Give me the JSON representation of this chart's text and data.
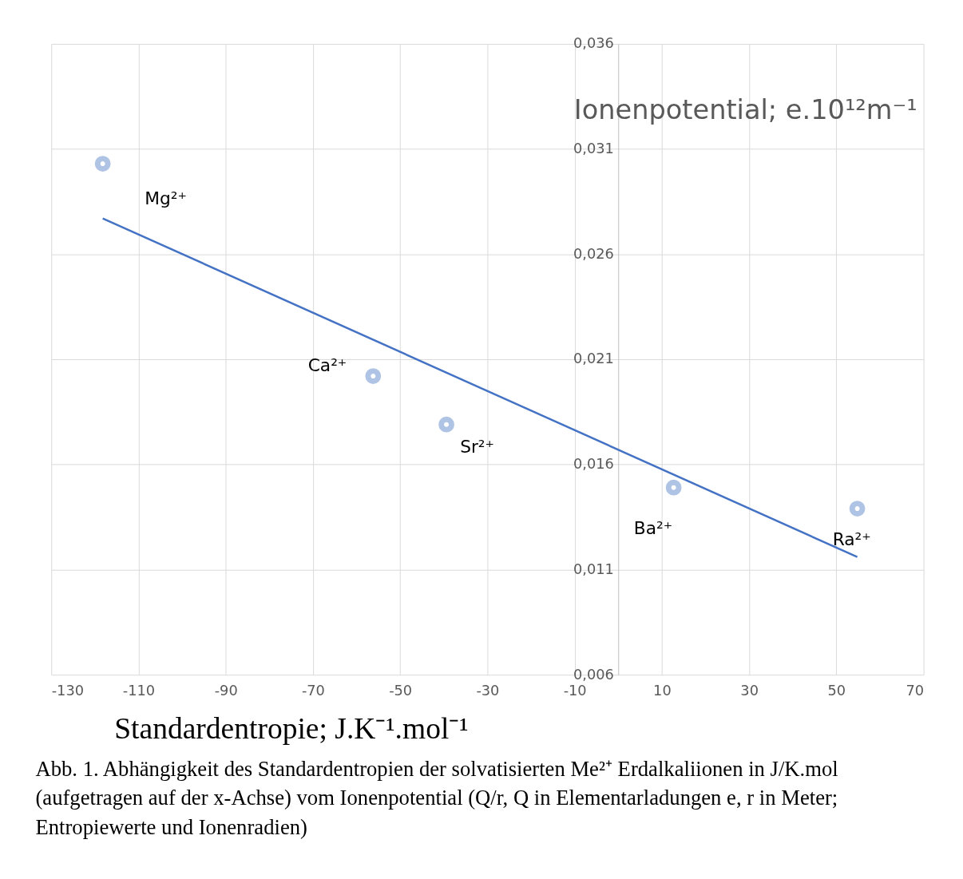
{
  "chart_data": {
    "type": "scatter",
    "xlabel": "Standardentropie; J.K⁻¹.mol⁻¹",
    "ylabel": "Ionenpotential; e.10¹²m⁻¹",
    "series": [
      {
        "type": "scatter",
        "color": "#8eaadb",
        "marker": "circle",
        "x": [
          -118.2,
          -56.2,
          -39.4,
          12.7,
          54.8
        ],
        "values": [
          0.0303,
          0.0202,
          0.0179,
          0.0149,
          0.0139
        ]
      },
      {
        "type": "line",
        "color": "#4472c4",
        "line_style": "solid",
        "x": [
          -118.2,
          54.8
        ],
        "values": [
          0.0277,
          0.0116
        ]
      }
    ],
    "xlim": [
      -130,
      70
    ],
    "xticks": [
      -130,
      -110,
      -90,
      -70,
      -50,
      -30,
      -10,
      10,
      30,
      50,
      70
    ],
    "ylim": [
      0.006,
      0.036
    ],
    "yticks": [
      {
        "value": 0.006,
        "label": "0,006"
      },
      {
        "value": 0.011,
        "label": "0,011"
      },
      {
        "value": 0.016,
        "label": "0,016"
      },
      {
        "value": 0.021,
        "label": "0,021"
      },
      {
        "value": 0.026,
        "label": "0,026"
      },
      {
        "value": 0.031,
        "label": "0,031"
      },
      {
        "value": 0.036,
        "label": "0,036"
      }
    ],
    "grid": true,
    "annotations": [
      {
        "text": "Mg²⁺",
        "x": -118.2,
        "y": 0.0303
      },
      {
        "text": "Ca²⁺",
        "x": -56.2,
        "y": 0.0202
      },
      {
        "text": "Sr²⁺",
        "x": -39.4,
        "y": 0.0179
      },
      {
        "text": "Ba²⁺",
        "x": 12.7,
        "y": 0.0149
      },
      {
        "text": "Ra²⁺",
        "x": 54.8,
        "y": 0.0139
      },
      "Abb. 1. Abhängigkeit des Standardentropien der solvatisierten Me²⁺ Erdalkaliionen in J/K.mol (aufgetragen auf der x-Achse) vom Ionenpotential (Q/r, Q in Elementarladungen e, r in Meter; Entropiewerte und Ionenradien)"
    ]
  }
}
